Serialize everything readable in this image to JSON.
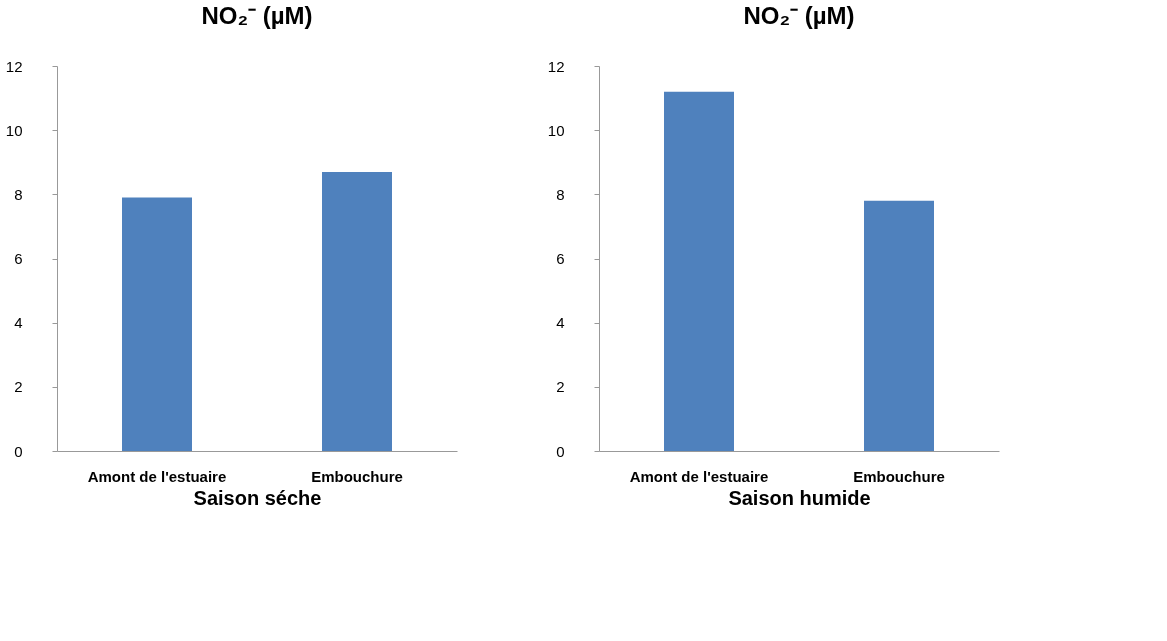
{
  "chart_data": [
    {
      "type": "bar",
      "title": "NO₂⁻ (µM)",
      "xlabel": "Saison séche",
      "categories": [
        "Amont de l'estuaire",
        "Embouchure"
      ],
      "values": [
        7.9,
        8.7
      ],
      "color": "#4f81bd",
      "ylim": [
        0,
        12
      ],
      "yticks": [
        0,
        2,
        4,
        6,
        8,
        10,
        12
      ],
      "grid": false
    },
    {
      "type": "bar",
      "title": "NO₂⁻ (µM)",
      "xlabel": "Saison humide",
      "categories": [
        "Amont de l'estuaire",
        "Embouchure"
      ],
      "values": [
        11.2,
        7.8
      ],
      "color": "#4f81bd",
      "ylim": [
        0,
        12
      ],
      "yticks": [
        0,
        2,
        4,
        6,
        8,
        10,
        12
      ],
      "grid": false
    }
  ]
}
